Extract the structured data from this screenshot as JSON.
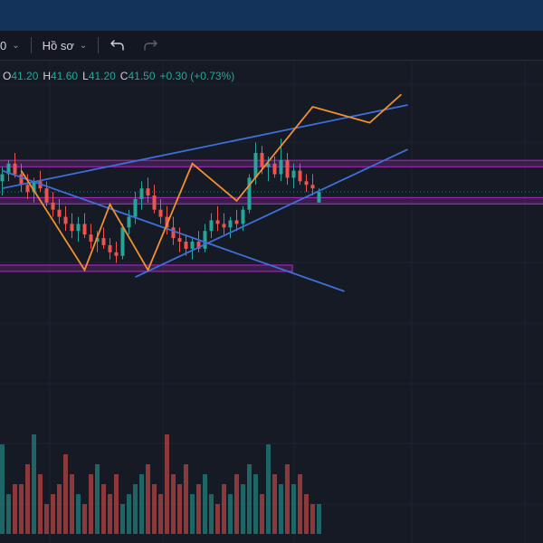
{
  "toolbar": {
    "interval_fragment": "0",
    "profile_label": "Hồ sơ",
    "undo_icon": "undo-icon",
    "redo_icon": "redo-icon"
  },
  "ohlc": {
    "o_label": "O",
    "o_value": "41.20",
    "h_label": "H",
    "h_value": "41.60",
    "l_label": "L",
    "l_value": "41.20",
    "c_label": "C",
    "c_value": "41.50",
    "change": "+0.30 (+0.73%)"
  },
  "colors": {
    "background": "#161a25",
    "up": "#26a69a",
    "down": "#ef5350",
    "trendline": "#3e6fd8",
    "pattern": "#f0902f",
    "zone": "#9c27b0",
    "grid": "#1f2330"
  },
  "chart_data": {
    "type": "candlestick",
    "title": "",
    "price_range": [
      35.0,
      45.2
    ],
    "open": 41.2,
    "high": 41.6,
    "low": 41.2,
    "close": 41.5,
    "candles": [
      [
        41.8,
        42.2,
        41.4,
        42.0
      ],
      [
        42.0,
        42.4,
        41.8,
        42.3
      ],
      [
        42.3,
        42.6,
        41.9,
        42.0
      ],
      [
        42.0,
        42.3,
        41.5,
        41.7
      ],
      [
        41.7,
        42.0,
        41.3,
        41.5
      ],
      [
        41.5,
        41.9,
        41.2,
        41.8
      ],
      [
        41.8,
        42.1,
        41.5,
        41.6
      ],
      [
        41.6,
        41.8,
        41.1,
        41.2
      ],
      [
        41.2,
        41.5,
        40.8,
        41.0
      ],
      [
        41.0,
        41.3,
        40.6,
        40.8
      ],
      [
        40.8,
        41.1,
        40.4,
        40.6
      ],
      [
        40.6,
        40.9,
        40.2,
        40.4
      ],
      [
        40.4,
        40.8,
        40.1,
        40.6
      ],
      [
        40.6,
        40.9,
        40.2,
        40.3
      ],
      [
        40.3,
        40.6,
        39.9,
        40.1
      ],
      [
        40.1,
        40.4,
        39.8,
        40.2
      ],
      [
        40.2,
        40.5,
        39.9,
        40.0
      ],
      [
        40.0,
        40.2,
        39.6,
        39.8
      ],
      [
        39.8,
        40.1,
        39.5,
        39.7
      ],
      [
        39.7,
        40.6,
        39.6,
        40.5
      ],
      [
        40.5,
        41.0,
        40.3,
        40.8
      ],
      [
        40.8,
        41.5,
        40.6,
        41.3
      ],
      [
        41.3,
        41.8,
        41.0,
        41.6
      ],
      [
        41.6,
        41.9,
        41.2,
        41.4
      ],
      [
        41.4,
        41.7,
        40.9,
        41.0
      ],
      [
        41.0,
        41.3,
        40.6,
        40.8
      ],
      [
        40.8,
        41.1,
        40.3,
        40.5
      ],
      [
        40.5,
        40.8,
        40.0,
        40.2
      ],
      [
        40.2,
        40.5,
        39.8,
        40.1
      ],
      [
        40.1,
        40.3,
        39.7,
        39.9
      ],
      [
        39.9,
        40.2,
        39.6,
        40.1
      ],
      [
        40.1,
        40.4,
        39.8,
        39.9
      ],
      [
        39.9,
        40.6,
        39.8,
        40.4
      ],
      [
        40.4,
        40.9,
        40.2,
        40.7
      ],
      [
        40.7,
        41.1,
        40.4,
        40.6
      ],
      [
        40.6,
        40.9,
        40.3,
        40.5
      ],
      [
        40.5,
        40.8,
        40.2,
        40.7
      ],
      [
        40.7,
        41.0,
        40.4,
        40.6
      ],
      [
        40.6,
        41.1,
        40.4,
        41.0
      ],
      [
        41.0,
        42.0,
        40.9,
        41.9
      ],
      [
        41.9,
        42.9,
        41.7,
        42.6
      ],
      [
        42.6,
        42.8,
        42.0,
        42.2
      ],
      [
        42.2,
        42.5,
        41.8,
        42.3
      ],
      [
        42.3,
        42.5,
        41.9,
        42.0
      ],
      [
        42.0,
        43.0,
        41.8,
        42.4
      ],
      [
        42.4,
        42.6,
        41.7,
        41.9
      ],
      [
        41.9,
        42.3,
        41.6,
        42.1
      ],
      [
        42.1,
        42.3,
        41.7,
        41.8
      ],
      [
        41.8,
        42.0,
        41.5,
        41.7
      ],
      [
        41.7,
        42.0,
        41.4,
        41.6
      ],
      [
        41.2,
        41.6,
        41.2,
        41.5
      ]
    ],
    "volumes": [
      9,
      4,
      5,
      5,
      7,
      10,
      6,
      3,
      4,
      5,
      8,
      6,
      4,
      3,
      6,
      7,
      5,
      4,
      6,
      3,
      4,
      5,
      6,
      7,
      5,
      4,
      10,
      6,
      5,
      7,
      4,
      5,
      6,
      4,
      3,
      5,
      4,
      6,
      5,
      7,
      6,
      4,
      9,
      6,
      5,
      7,
      5,
      6,
      4,
      3,
      3
    ],
    "horizontal_zones": [
      {
        "price": 42.3,
        "span": "full-width"
      },
      {
        "price": 41.25,
        "span": "full-width"
      },
      {
        "price": 39.35,
        "span": "left-half"
      }
    ],
    "trendlines": [
      {
        "from": [
          0,
          41.6
        ],
        "to": [
          64,
          43.95
        ]
      },
      {
        "from": [
          0,
          42.1
        ],
        "to": [
          54,
          38.7
        ]
      },
      {
        "from": [
          21,
          39.1
        ],
        "to": [
          64,
          42.7
        ]
      }
    ],
    "zigzag": [
      [
        3,
        42.1
      ],
      [
        13,
        39.3
      ],
      [
        17,
        41.15
      ],
      [
        23,
        39.3
      ],
      [
        30,
        42.3
      ],
      [
        37,
        41.25
      ],
      [
        49,
        43.9
      ],
      [
        58,
        43.45
      ],
      [
        63,
        44.25
      ]
    ]
  }
}
